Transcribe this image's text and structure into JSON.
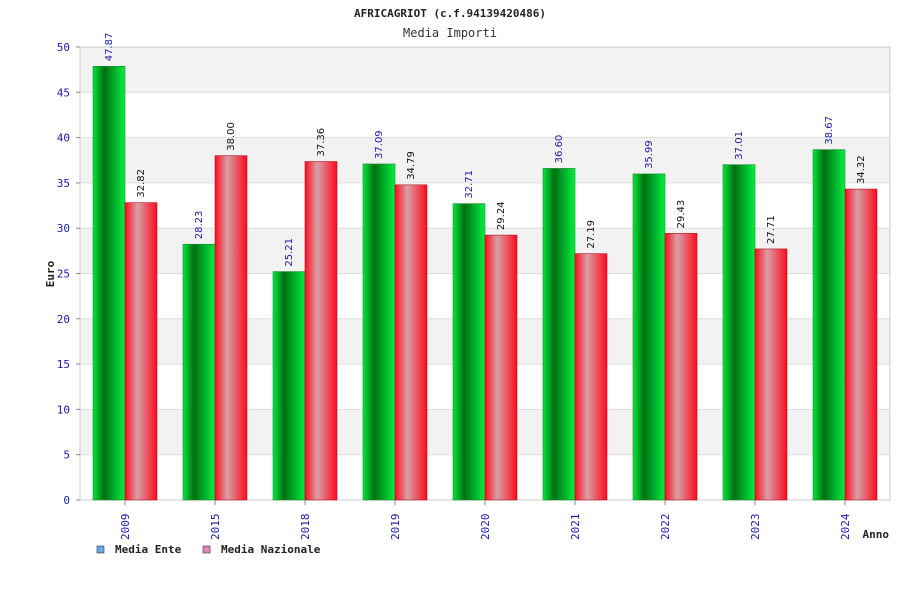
{
  "chart_data": {
    "type": "bar",
    "title": "AFRICAGRIOT (c.f.94139420486)",
    "subtitle": "Media Importi",
    "xlabel": "Anno",
    "ylabel": "Euro",
    "ylim": [
      0,
      50
    ],
    "yticks": [
      0,
      5,
      10,
      15,
      20,
      25,
      30,
      35,
      40,
      45,
      50
    ],
    "grid": true,
    "legend_position": "bottom-left",
    "categories": [
      "2009",
      "2015",
      "2018",
      "2019",
      "2020",
      "2021",
      "2022",
      "2023",
      "2024"
    ],
    "series": [
      {
        "name": "Media Ente",
        "color": "#00cc22",
        "legend_color": "#6aa6e8",
        "values": [
          47.87,
          28.23,
          25.21,
          37.09,
          32.71,
          36.6,
          35.99,
          37.01,
          38.67
        ],
        "labels": [
          "47.87",
          "28.23",
          "25.21",
          "37.09",
          "32.71",
          "36.60",
          "35.99",
          "37.01",
          "38.67"
        ]
      },
      {
        "name": "Media Nazionale",
        "color": "#ff1a2a",
        "legend_color": "#e089b8",
        "values": [
          32.82,
          38.0,
          37.36,
          34.79,
          29.24,
          27.19,
          29.43,
          27.71,
          34.32
        ],
        "labels": [
          "32.82",
          "38.00",
          "37.36",
          "34.79",
          "29.24",
          "27.19",
          "29.43",
          "27.71",
          "34.32"
        ]
      }
    ]
  }
}
